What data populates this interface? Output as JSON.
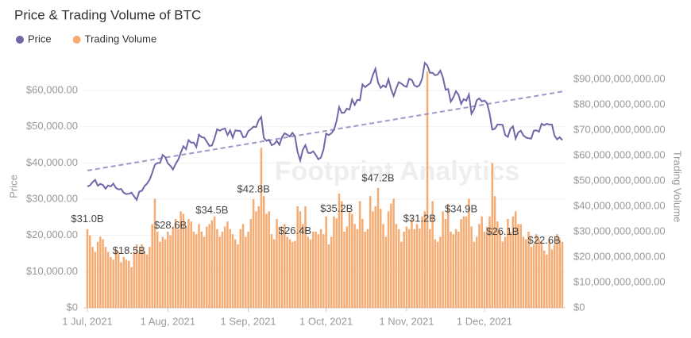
{
  "chart_data": {
    "type": "bar-line",
    "title": "Price & Trading Volume of BTC",
    "watermark": "Footprint Analytics",
    "y_label": "Price",
    "y2_label": "Trading Volume",
    "x": [
      "2021-07-01",
      "2021-07-02",
      "2021-07-03",
      "2021-07-04",
      "2021-07-05",
      "2021-07-06",
      "2021-07-07",
      "2021-07-08",
      "2021-07-09",
      "2021-07-10",
      "2021-07-11",
      "2021-07-12",
      "2021-07-13",
      "2021-07-14",
      "2021-07-15",
      "2021-07-16",
      "2021-07-17",
      "2021-07-18",
      "2021-07-19",
      "2021-07-20",
      "2021-07-21",
      "2021-07-22",
      "2021-07-23",
      "2021-07-24",
      "2021-07-25",
      "2021-07-26",
      "2021-07-27",
      "2021-07-28",
      "2021-07-29",
      "2021-07-30",
      "2021-07-31",
      "2021-08-01",
      "2021-08-02",
      "2021-08-03",
      "2021-08-04",
      "2021-08-05",
      "2021-08-06",
      "2021-08-07",
      "2021-08-08",
      "2021-08-09",
      "2021-08-10",
      "2021-08-11",
      "2021-08-12",
      "2021-08-13",
      "2021-08-14",
      "2021-08-15",
      "2021-08-16",
      "2021-08-17",
      "2021-08-18",
      "2021-08-19",
      "2021-08-20",
      "2021-08-21",
      "2021-08-22",
      "2021-08-23",
      "2021-08-24",
      "2021-08-25",
      "2021-08-26",
      "2021-08-27",
      "2021-08-28",
      "2021-08-29",
      "2021-08-30",
      "2021-08-31",
      "2021-09-01",
      "2021-09-02",
      "2021-09-03",
      "2021-09-04",
      "2021-09-05",
      "2021-09-06",
      "2021-09-07",
      "2021-09-08",
      "2021-09-09",
      "2021-09-10",
      "2021-09-11",
      "2021-09-12",
      "2021-09-13",
      "2021-09-14",
      "2021-09-15",
      "2021-09-16",
      "2021-09-17",
      "2021-09-18",
      "2021-09-19",
      "2021-09-20",
      "2021-09-21",
      "2021-09-22",
      "2021-09-23",
      "2021-09-24",
      "2021-09-25",
      "2021-09-26",
      "2021-09-27",
      "2021-09-28",
      "2021-09-29",
      "2021-09-30",
      "2021-10-01",
      "2021-10-02",
      "2021-10-03",
      "2021-10-04",
      "2021-10-05",
      "2021-10-06",
      "2021-10-07",
      "2021-10-08",
      "2021-10-09",
      "2021-10-10",
      "2021-10-11",
      "2021-10-12",
      "2021-10-13",
      "2021-10-14",
      "2021-10-15",
      "2021-10-16",
      "2021-10-17",
      "2021-10-18",
      "2021-10-19",
      "2021-10-20",
      "2021-10-21",
      "2021-10-22",
      "2021-10-23",
      "2021-10-24",
      "2021-10-25",
      "2021-10-26",
      "2021-10-27",
      "2021-10-28",
      "2021-10-29",
      "2021-10-30",
      "2021-10-31",
      "2021-11-01",
      "2021-11-02",
      "2021-11-03",
      "2021-11-04",
      "2021-11-05",
      "2021-11-06",
      "2021-11-07",
      "2021-11-08",
      "2021-11-09",
      "2021-11-10",
      "2021-11-11",
      "2021-11-12",
      "2021-11-13",
      "2021-11-14",
      "2021-11-15",
      "2021-11-16",
      "2021-11-17",
      "2021-11-18",
      "2021-11-19",
      "2021-11-20",
      "2021-11-21",
      "2021-11-22",
      "2021-11-23",
      "2021-11-24",
      "2021-11-25",
      "2021-11-26",
      "2021-11-27",
      "2021-11-28",
      "2021-11-29",
      "2021-11-30",
      "2021-12-01",
      "2021-12-02",
      "2021-12-03",
      "2021-12-04",
      "2021-12-05",
      "2021-12-06",
      "2021-12-07",
      "2021-12-08",
      "2021-12-09",
      "2021-12-10",
      "2021-12-11",
      "2021-12-12",
      "2021-12-13",
      "2021-12-14",
      "2021-12-15",
      "2021-12-16",
      "2021-12-17",
      "2021-12-18",
      "2021-12-19",
      "2021-12-20",
      "2021-12-21",
      "2021-12-22",
      "2021-12-23",
      "2021-12-24",
      "2021-12-25",
      "2021-12-26",
      "2021-12-27",
      "2021-12-28",
      "2021-12-29",
      "2021-12-30",
      "2021-12-31"
    ],
    "series": [
      {
        "name": "Price",
        "type": "line",
        "color": "#6e67a8",
        "values": [
          33500,
          33800,
          34700,
          35300,
          33700,
          34200,
          33900,
          32900,
          33800,
          33500,
          34300,
          33100,
          32700,
          32800,
          31800,
          31400,
          31500,
          31800,
          30800,
          29800,
          32100,
          32300,
          33600,
          34300,
          35400,
          37300,
          39500,
          40000,
          40000,
          42200,
          41600,
          39900,
          39200,
          38200,
          39700,
          40900,
          42800,
          44600,
          43800,
          46300,
          45600,
          45600,
          44400,
          47800,
          47100,
          47000,
          45900,
          44700,
          44800,
          46800,
          49300,
          48900,
          49300,
          49500,
          47700,
          49000,
          47000,
          49000,
          48900,
          48800,
          47100,
          47200,
          48800,
          49300,
          50000,
          49900,
          51800,
          52700,
          46900,
          46100,
          46400,
          44900,
          45200,
          46100,
          45000,
          47100,
          48200,
          47800,
          47300,
          48300,
          47300,
          43000,
          40700,
          43600,
          44900,
          42800,
          42700,
          43200,
          42200,
          41000,
          41500,
          43800,
          48100,
          47700,
          48200,
          49100,
          51500,
          55400,
          53800,
          53900,
          55000,
          54700,
          57500,
          56000,
          57400,
          57300,
          61700,
          60900,
          61500,
          62000,
          64300,
          66000,
          62200,
          60700,
          61400,
          60900,
          63100,
          60400,
          58500,
          60600,
          62300,
          61900,
          61300,
          61000,
          63200,
          62900,
          61400,
          61000,
          61500,
          63300,
          67600,
          66900,
          64900,
          64900,
          64200,
          64400,
          65500,
          63600,
          60200,
          60400,
          56900,
          58100,
          59800,
          58800,
          56300,
          57600,
          57200,
          58900,
          53600,
          54800,
          57300,
          57800,
          57000,
          57200,
          56500,
          53600,
          49200,
          49400,
          50600,
          50600,
          50500,
          47700,
          47200,
          49400,
          50100,
          46700,
          48400,
          48900,
          47600,
          47000,
          46800,
          46700,
          48900,
          49000,
          48600,
          50800,
          50400,
          50800,
          50600,
          50600,
          47500,
          46500,
          47100,
          46300
        ]
      },
      {
        "name": "Trading Volume",
        "type": "bar",
        "axis": "y2",
        "color": "#f5ab72",
        "values": [
          31000000000.0,
          28500000000.0,
          24000000000.0,
          22000000000.0,
          26000000000.0,
          28000000000.0,
          27000000000.0,
          24000000000.0,
          22000000000.0,
          20000000000.0,
          19000000000.0,
          23000000000.0,
          22000000000.0,
          18000000000.0,
          20000000000.0,
          19000000000.0,
          18500000000.0,
          16000000000.0,
          22000000000.0,
          25000000000.0,
          22000000000.0,
          25000000000.0,
          22000000000.0,
          21000000000.0,
          24000000000.0,
          33000000000.0,
          43000000000.0,
          30000000000.0,
          26000000000.0,
          28000000000.0,
          27000000000.0,
          30000000000.0,
          28600000000.0,
          32000000000.0,
          35000000000.0,
          31000000000.0,
          38000000000.0,
          37000000000.0,
          32000000000.0,
          35000000000.0,
          34000000000.0,
          30000000000.0,
          29000000000.0,
          33000000000.0,
          30000000000.0,
          28000000000.0,
          32000000000.0,
          33000000000.0,
          34500000000.0,
          36000000000.0,
          31000000000.0,
          28000000000.0,
          30000000000.0,
          32000000000.0,
          34000000000.0,
          31000000000.0,
          29000000000.0,
          27000000000.0,
          25000000000.0,
          31000000000.0,
          33000000000.0,
          28000000000.0,
          30000000000.0,
          35000000000.0,
          42800000000.0,
          38000000000.0,
          40000000000.0,
          63000000000.0,
          44000000000.0,
          37000000000.0,
          38000000000.0,
          29000000000.0,
          27000000000.0,
          35000000000.0,
          32000000000.0,
          29000000000.0,
          33000000000.0,
          28000000000.0,
          27000000000.0,
          26000000000.0,
          26400000000.0,
          40000000000.0,
          38000000000.0,
          33000000000.0,
          40000000000.0,
          28000000000.0,
          27000000000.0,
          30000000000.0,
          30000000000.0,
          29000000000.0,
          31000000000.0,
          29000000000.0,
          36000000000.0,
          25000000000.0,
          28000000000.0,
          36000000000.0,
          35200000000.0,
          45000000000.0,
          42000000000.0,
          30000000000.0,
          32000000000.0,
          38000000000.0,
          37000000000.0,
          33000000000.0,
          31000000000.0,
          42000000000.0,
          35000000000.0,
          30000000000.0,
          31000000000.0,
          44000000000.0,
          38000000000.0,
          40000000000.0,
          47200000000.0,
          39000000000.0,
          33000000000.0,
          28000000000.0,
          38000000000.0,
          41000000000.0,
          43000000000.0,
          33000000000.0,
          31000000000.0,
          26000000000.0,
          30000000000.0,
          32000000000.0,
          31000000000.0,
          35000000000.0,
          31000000000.0,
          33000000000.0,
          31200000000.0,
          36000000000.0,
          38000000000.0,
          93000000000.0,
          31000000000.0,
          42000000000.0,
          27000000000.0,
          26000000000.0,
          28000000000.0,
          38000000000.0,
          35000000000.0,
          41000000000.0,
          30000000000.0,
          29000000000.0,
          31000000000.0,
          30000000000.0,
          34900000000.0,
          36000000000.0,
          36000000000.0,
          43000000000.0,
          32000000000.0,
          26000000000.0,
          28000000000.0,
          33000000000.0,
          36000000000.0,
          30000000000.0,
          32000000000.0,
          36000000000.0,
          57000000000.0,
          44000000000.0,
          34000000000.0,
          30000000000.0,
          26100000000.0,
          28000000000.0,
          35000000000.0,
          30000000000.0,
          36000000000.0,
          38000000000.0,
          33000000000.0,
          33000000000.0,
          28000000000.0,
          27000000000.0,
          30000000000.0,
          24000000000.0,
          25000000000.0,
          29000000000.0,
          27000000000.0,
          26000000000.0,
          22600000000.0,
          21000000000.0,
          27000000000.0,
          23000000000.0,
          25000000000.0,
          29000000000.0,
          27000000000.0,
          26000000000.0
        ],
        "value_labels": [
          "$31.0B",
          null,
          null,
          null,
          null,
          null,
          null,
          null,
          null,
          null,
          null,
          null,
          null,
          null,
          null,
          null,
          "$18.5B",
          null,
          null,
          null,
          null,
          null,
          null,
          null,
          null,
          null,
          null,
          null,
          null,
          null,
          null,
          null,
          "$28.6B",
          null,
          null,
          null,
          null,
          null,
          null,
          null,
          null,
          null,
          null,
          null,
          null,
          null,
          null,
          null,
          "$34.5B",
          null,
          null,
          null,
          null,
          null,
          null,
          null,
          null,
          null,
          null,
          null,
          null,
          null,
          null,
          null,
          "$42.8B",
          null,
          null,
          null,
          null,
          null,
          null,
          null,
          null,
          null,
          null,
          null,
          null,
          null,
          null,
          null,
          "$26.4B",
          null,
          null,
          null,
          null,
          null,
          null,
          null,
          null,
          null,
          null,
          null,
          null,
          null,
          null,
          null,
          "$35.2B",
          null,
          null,
          null,
          null,
          null,
          null,
          null,
          null,
          null,
          null,
          null,
          null,
          null,
          null,
          null,
          "$47.2B",
          null,
          null,
          null,
          null,
          null,
          null,
          null,
          null,
          null,
          null,
          null,
          null,
          null,
          null,
          null,
          "$31.2B",
          null,
          null,
          null,
          null,
          null,
          null,
          null,
          null,
          null,
          null,
          null,
          null,
          null,
          null,
          null,
          "$34.9B",
          null,
          null,
          null,
          null,
          null,
          null,
          null,
          null,
          null,
          null,
          null,
          null,
          null,
          null,
          null,
          "$26.1B",
          null,
          null,
          null,
          null,
          null,
          null,
          null,
          null,
          null,
          null,
          null,
          null,
          null,
          null,
          null,
          "$22.6B",
          null,
          null,
          null,
          null,
          null,
          null,
          null
        ]
      }
    ],
    "trend": {
      "color": "#9f99c9",
      "values": [
        37900,
        59700
      ]
    },
    "ylim": [
      0,
      68000
    ],
    "y2lim": [
      0,
      97000000000
    ],
    "yticks": [
      {
        "value": 0,
        "label": "$0"
      },
      {
        "value": 10000,
        "label": "$10,000.00"
      },
      {
        "value": 20000,
        "label": "$20,000.00"
      },
      {
        "value": 30000,
        "label": "$30,000.00"
      },
      {
        "value": 40000,
        "label": "$40,000.00"
      },
      {
        "value": 50000,
        "label": "$50,000.00"
      },
      {
        "value": 60000,
        "label": "$60,000.00"
      }
    ],
    "y2ticks": [
      {
        "value": 0,
        "label": "$0"
      },
      {
        "value": 10000000000,
        "label": "$10,000,000,000.00"
      },
      {
        "value": 20000000000,
        "label": "$20,000,000,000.00"
      },
      {
        "value": 30000000000,
        "label": "$30,000,000,000.00"
      },
      {
        "value": 40000000000,
        "label": "$40,000,000,000.00"
      },
      {
        "value": 50000000000,
        "label": "$50,000,000,000.00"
      },
      {
        "value": 60000000000,
        "label": "$60,000,000,000.00"
      },
      {
        "value": 70000000000,
        "label": "$70,000,000,000.00"
      },
      {
        "value": 80000000000,
        "label": "$80,000,000,000.00"
      },
      {
        "value": 90000000000,
        "label": "$90,000,000,000.00"
      }
    ],
    "xticks": [
      {
        "value": "2021-07-01",
        "label": "1 Jul, 2021"
      },
      {
        "value": "2021-08-01",
        "label": "1 Aug, 2021"
      },
      {
        "value": "2021-09-01",
        "label": "1 Sep, 2021"
      },
      {
        "value": "2021-10-01",
        "label": "1 Oct, 2021"
      },
      {
        "value": "2021-11-01",
        "label": "1 Nov, 2021"
      },
      {
        "value": "2021-12-01",
        "label": "1 Dec, 2021"
      }
    ],
    "grid": true
  }
}
